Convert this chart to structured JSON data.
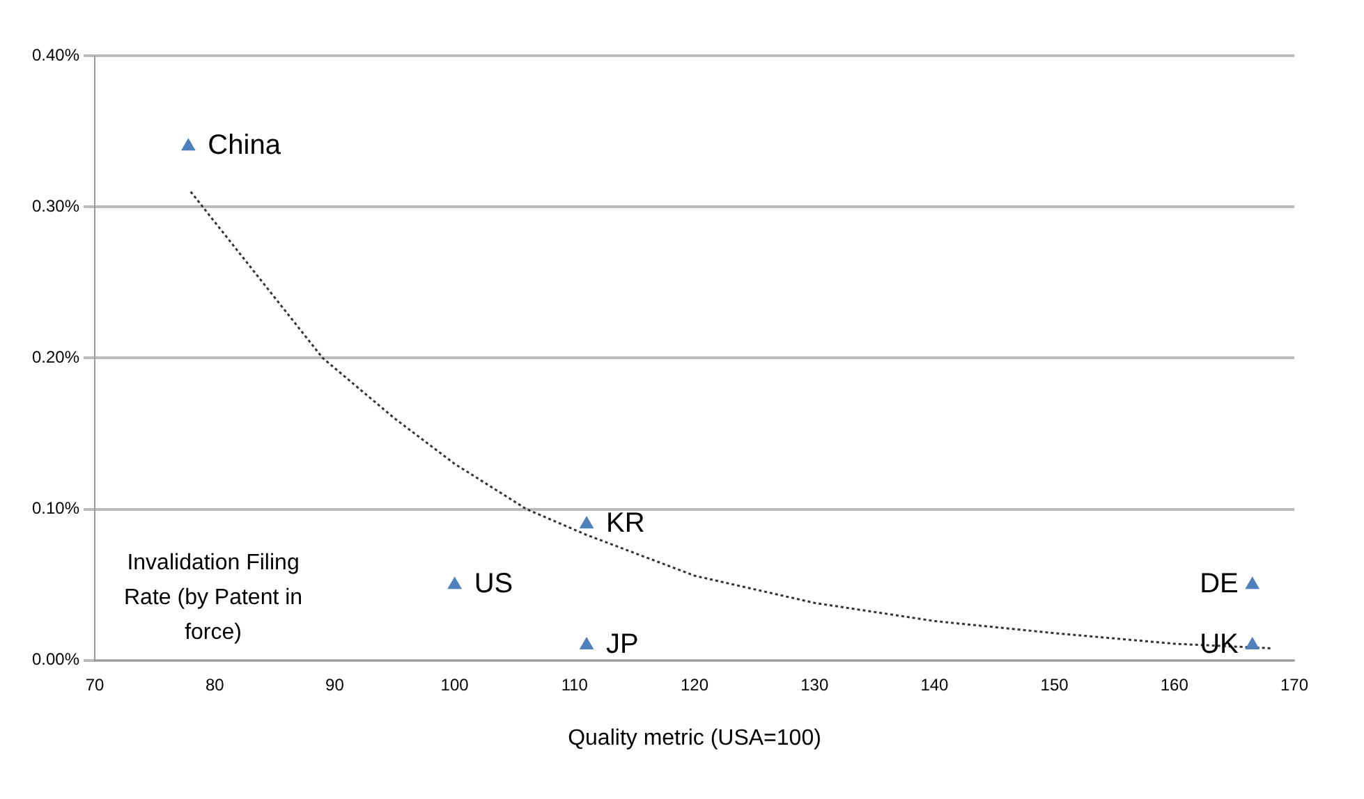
{
  "chart_data": {
    "type": "scatter",
    "xlabel": "Quality metric (USA=100)",
    "ylabel": "Invalidation Filing Rate (by Patent in force)",
    "xlim": [
      70,
      170
    ],
    "xticks": [
      70,
      80,
      90,
      100,
      110,
      120,
      130,
      140,
      150,
      160,
      170
    ],
    "ylim": [
      0,
      0.4
    ],
    "yticks": [
      {
        "value": 0,
        "label": "0.00%"
      },
      {
        "value": 0.1,
        "label": "0.10%"
      },
      {
        "value": 0.2,
        "label": "0.20%"
      },
      {
        "value": 0.3,
        "label": "0.30%"
      },
      {
        "value": 0.4,
        "label": "0.40%"
      }
    ],
    "grid": "y",
    "legend": false,
    "marker": "triangle",
    "series": [
      {
        "type": "scatter",
        "color": "#4f81bd",
        "x": [
          77.8,
          100,
          111,
          111,
          166.5,
          166.5
        ],
        "values": [
          0.34,
          0.05,
          0.09,
          0.01,
          0.05,
          0.01
        ]
      },
      {
        "type": "line",
        "color": "#333333",
        "marker": "none",
        "line_style": "dotted",
        "x": [
          78,
          84,
          89,
          95,
          100,
          106,
          111,
          120,
          130,
          140,
          150,
          160,
          168
        ],
        "values": [
          0.31,
          0.25,
          0.2,
          0.16,
          0.13,
          0.1,
          0.083,
          0.056,
          0.038,
          0.026,
          0.018,
          0.011,
          0.008
        ]
      }
    ],
    "annotations": [
      {
        "text": "China",
        "x": 77.8,
        "y": 0.34
      },
      {
        "text": "US",
        "x": 100,
        "y": 0.05
      },
      {
        "text": "KR",
        "x": 111,
        "y": 0.09
      },
      {
        "text": "JP",
        "x": 111,
        "y": 0.01
      },
      {
        "text": "DE",
        "x": 166.5,
        "y": 0.05
      },
      {
        "text": "UK",
        "x": 166.5,
        "y": 0.01
      }
    ]
  }
}
